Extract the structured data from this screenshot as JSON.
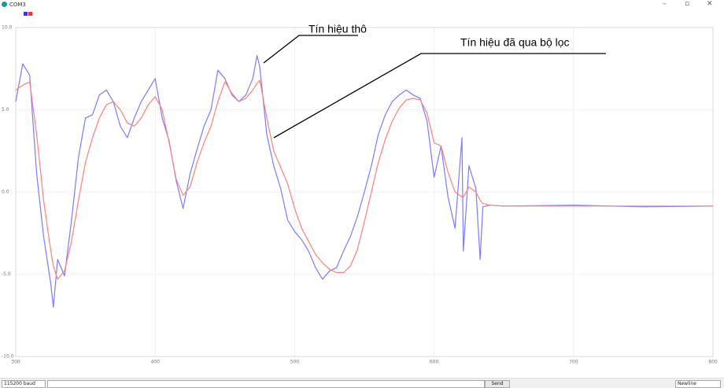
{
  "window": {
    "title": "COM3"
  },
  "chart_data": {
    "type": "line",
    "x": [
      300,
      305,
      310,
      315,
      320,
      325,
      327,
      330,
      335,
      340,
      345,
      350,
      355,
      360,
      365,
      370,
      375,
      380,
      385,
      390,
      395,
      400,
      405,
      410,
      415,
      420,
      425,
      430,
      435,
      440,
      445,
      450,
      455,
      460,
      465,
      470,
      473,
      475,
      480,
      485,
      490,
      495,
      500,
      505,
      510,
      515,
      520,
      525,
      530,
      535,
      540,
      545,
      550,
      555,
      560,
      565,
      570,
      575,
      580,
      585,
      590,
      595,
      600,
      605,
      610,
      615,
      620,
      621,
      625,
      630,
      633,
      635,
      640,
      650,
      700,
      750,
      800
    ],
    "series": [
      {
        "color": "#7b7bff",
        "values": [
          5.5,
          7.8,
          7.1,
          1.1,
          -2.7,
          -5.5,
          -7.0,
          -4.1,
          -5.1,
          -1.7,
          2.1,
          4.5,
          4.7,
          5.9,
          6.2,
          5.5,
          4.0,
          3.3,
          4.5,
          5.5,
          6.2,
          6.9,
          4.5,
          3.1,
          0.7,
          -1.0,
          1.1,
          2.6,
          4.0,
          5.0,
          7.4,
          6.9,
          5.9,
          5.5,
          5.9,
          6.9,
          8.3,
          7.6,
          3.5,
          1.6,
          0.2,
          -1.7,
          -2.4,
          -2.9,
          -3.6,
          -4.6,
          -5.3,
          -4.8,
          -4.6,
          -3.6,
          -2.7,
          -1.5,
          0,
          1.6,
          3.5,
          4.7,
          5.5,
          5.9,
          6.2,
          5.9,
          5.7,
          4.3,
          0.9,
          2.8,
          -0.3,
          -2.2,
          3.3,
          -3.6,
          1.6,
          0.2,
          -4.1,
          -0.9,
          -0.8,
          -0.85,
          -0.8,
          -0.9,
          -0.85
        ]
      },
      {
        "color": "#ff8080",
        "values": [
          6.2,
          6.5,
          6.7,
          3.5,
          -0.5,
          -3.5,
          -4.5,
          -5.3,
          -4.8,
          -3.0,
          -0.5,
          1.8,
          3.3,
          4.5,
          5.3,
          5.5,
          5.0,
          4.2,
          4.0,
          4.5,
          5.3,
          5.8,
          5.0,
          3.0,
          0.8,
          -0.2,
          0.3,
          1.8,
          3.0,
          4.0,
          5.5,
          6.7,
          6.0,
          5.5,
          5.7,
          6.2,
          6.6,
          6.8,
          4.5,
          2.5,
          1.5,
          0.5,
          -1.0,
          -2.2,
          -3.0,
          -3.8,
          -4.3,
          -4.7,
          -4.9,
          -4.9,
          -4.5,
          -3.5,
          -1.8,
          0,
          1.8,
          3.2,
          4.3,
          5.1,
          5.6,
          5.7,
          5.6,
          4.8,
          3.0,
          2.8,
          1.2,
          0,
          -0.3,
          -0.3,
          0.3,
          0,
          -0.5,
          -0.7,
          -0.8,
          -0.85,
          -0.85,
          -0.85,
          -0.85
        ]
      }
    ],
    "xlim": [
      300,
      800
    ],
    "ylim": [
      -10,
      10
    ],
    "xticks": [
      300,
      400,
      500,
      600,
      700,
      800
    ],
    "yticks": [
      {
        "value": 10,
        "label": "10.0"
      },
      {
        "value": 5,
        "label": "5.0"
      },
      {
        "value": 0,
        "label": "0.0"
      },
      {
        "value": -5,
        "label": "-5.0"
      },
      {
        "value": -10,
        "label": "-10.0"
      }
    ],
    "grid": true,
    "annotations": [
      {
        "text": "Tín hiệu thô"
      },
      {
        "text": "Tín hiệu đã qua bộ lọc"
      }
    ]
  },
  "controls": {
    "baud": "115200 baud",
    "send": "Send",
    "line_ending": "Newline"
  }
}
